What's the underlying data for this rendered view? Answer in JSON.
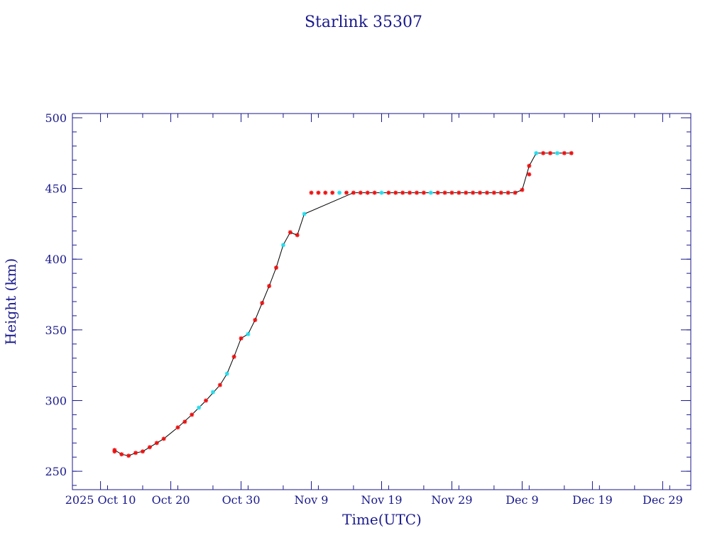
{
  "colors": {
    "frame": "#1a1a8c",
    "line": "#000000",
    "marker_primary": "#ee1111",
    "marker_secondary": "#22ddee"
  },
  "chart_data": {
    "type": "line",
    "title": "Starlink 35307",
    "xlabel": "Time(UTC)",
    "ylabel": "Height (km)",
    "ylim": [
      237,
      503
    ],
    "xlim": [
      "2025-10-06",
      "2026-01-02"
    ],
    "x_ticks": [
      "2025-10-10",
      "2025-10-20",
      "2025-10-30",
      "2025-11-09",
      "2025-11-19",
      "2025-11-29",
      "2025-12-09",
      "2025-12-19",
      "2025-12-29"
    ],
    "x_tick_labels": [
      "2025 Oct 10",
      "Oct 20",
      "Oct 30",
      "Nov  9",
      "Nov 19",
      "Nov 29",
      "Dec  9",
      "Dec 19",
      "Dec 29"
    ],
    "y_ticks": [
      250,
      300,
      350,
      400,
      450,
      500
    ],
    "y_tick_labels": [
      "250",
      "300",
      "350",
      "400",
      "450",
      "500"
    ],
    "grid": false,
    "series": [
      {
        "x": [
          "2025-10-12",
          "2025-10-13",
          "2025-10-14",
          "2025-10-15",
          "2025-10-16",
          "2025-10-17",
          "2025-10-19",
          "2025-10-21",
          "2025-10-23",
          "2025-10-25",
          "2025-10-27",
          "2025-10-28",
          "2025-10-29",
          "2025-10-30",
          "2025-10-31",
          "2025-11-01",
          "2025-11-02",
          "2025-11-03",
          "2025-11-04",
          "2025-11-05",
          "2025-11-06",
          "2025-11-07",
          "2025-11-08",
          "2025-11-15",
          "2025-11-25",
          "2025-12-05",
          "2025-12-08",
          "2025-12-09",
          "2025-12-10",
          "2025-12-11",
          "2025-12-16"
        ],
        "y": [
          265,
          262,
          261,
          263,
          264,
          267,
          273,
          281,
          290,
          300,
          311,
          319,
          331,
          344,
          347,
          357,
          369,
          381,
          394,
          410,
          419,
          417,
          432,
          447,
          447,
          447,
          447,
          449,
          466,
          475,
          475
        ],
        "markers_x": [
          "2025-10-12",
          "2025-10-12",
          "2025-10-13",
          "2025-10-14",
          "2025-10-15",
          "2025-10-16",
          "2025-10-17",
          "2025-10-18",
          "2025-10-19",
          "2025-10-21",
          "2025-10-22",
          "2025-10-23",
          "2025-10-24",
          "2025-10-25",
          "2025-10-26",
          "2025-10-27",
          "2025-10-28",
          "2025-10-29",
          "2025-10-30",
          "2025-10-31",
          "2025-11-01",
          "2025-11-02",
          "2025-11-03",
          "2025-11-04",
          "2025-11-05",
          "2025-11-06",
          "2025-11-07",
          "2025-11-08",
          "2025-11-09",
          "2025-11-10",
          "2025-11-11",
          "2025-11-12",
          "2025-11-13",
          "2025-11-14",
          "2025-11-15",
          "2025-11-16",
          "2025-11-17",
          "2025-11-18",
          "2025-11-19",
          "2025-11-20",
          "2025-11-21",
          "2025-11-22",
          "2025-11-23",
          "2025-11-24",
          "2025-11-25",
          "2025-11-26",
          "2025-11-27",
          "2025-11-28",
          "2025-11-29",
          "2025-11-30",
          "2025-12-01",
          "2025-12-02",
          "2025-12-03",
          "2025-12-04",
          "2025-12-05",
          "2025-12-06",
          "2025-12-07",
          "2025-12-08",
          "2025-12-09",
          "2025-12-10",
          "2025-12-10",
          "2025-12-11",
          "2025-12-12",
          "2025-12-13",
          "2025-12-14",
          "2025-12-15",
          "2025-12-16"
        ],
        "markers_y": [
          265,
          264,
          262,
          261,
          263,
          264,
          267,
          270,
          273,
          281,
          285,
          290,
          295,
          300,
          306,
          311,
          319,
          331,
          344,
          347,
          357,
          369,
          381,
          394,
          410,
          419,
          417,
          432,
          447,
          447,
          447,
          447,
          447,
          447,
          447,
          447,
          447,
          447,
          447,
          447,
          447,
          447,
          447,
          447,
          447,
          447,
          447,
          447,
          447,
          447,
          447,
          447,
          447,
          447,
          447,
          447,
          447,
          447,
          449,
          460,
          466,
          475,
          475,
          475,
          475,
          475,
          475
        ],
        "markers_color": [
          "primary",
          "primary",
          "primary",
          "primary",
          "primary",
          "primary",
          "primary",
          "primary",
          "primary",
          "primary",
          "primary",
          "primary",
          "secondary",
          "primary",
          "secondary",
          "primary",
          "secondary",
          "primary",
          "primary",
          "secondary",
          "primary",
          "primary",
          "primary",
          "primary",
          "secondary",
          "primary",
          "primary",
          "secondary",
          "primary",
          "primary",
          "primary",
          "primary",
          "secondary",
          "primary",
          "primary",
          "primary",
          "primary",
          "primary",
          "secondary",
          "primary",
          "primary",
          "primary",
          "primary",
          "primary",
          "primary",
          "secondary",
          "primary",
          "primary",
          "primary",
          "primary",
          "primary",
          "primary",
          "primary",
          "primary",
          "primary",
          "primary",
          "primary",
          "primary",
          "primary",
          "primary",
          "primary",
          "secondary",
          "primary",
          "primary",
          "secondary",
          "primary",
          "primary"
        ]
      }
    ]
  }
}
